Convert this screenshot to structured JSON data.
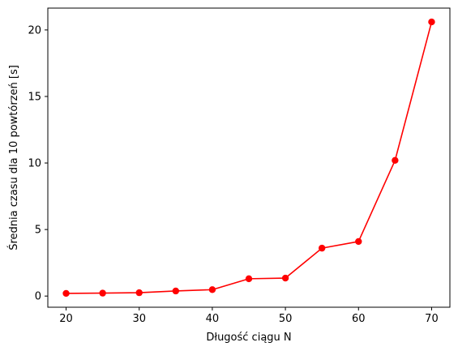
{
  "chart_data": {
    "type": "line",
    "title": "",
    "xlabel": "Długość ciągu N",
    "ylabel": "Średnia czasu dla 10 powtórzeń [s]",
    "x": [
      20,
      25,
      30,
      35,
      40,
      45,
      50,
      55,
      60,
      65,
      70
    ],
    "series": [
      {
        "values": [
          0.2,
          0.22,
          0.25,
          0.38,
          0.48,
          1.3,
          1.35,
          3.6,
          4.1,
          10.2,
          20.6
        ],
        "color": "#ff0000",
        "marker": "circle"
      }
    ],
    "xlim": [
      17.5,
      72.5
    ],
    "ylim": [
      -0.84,
      21.64
    ],
    "xticks": [
      20,
      30,
      40,
      50,
      60,
      70
    ],
    "xtick_labels": [
      "20",
      "30",
      "40",
      "50",
      "60",
      "70"
    ],
    "yticks": [
      0,
      5,
      10,
      15,
      20
    ],
    "ytick_labels": [
      "0",
      "5",
      "10",
      "15",
      "20"
    ],
    "grid": false,
    "legend": "none"
  }
}
